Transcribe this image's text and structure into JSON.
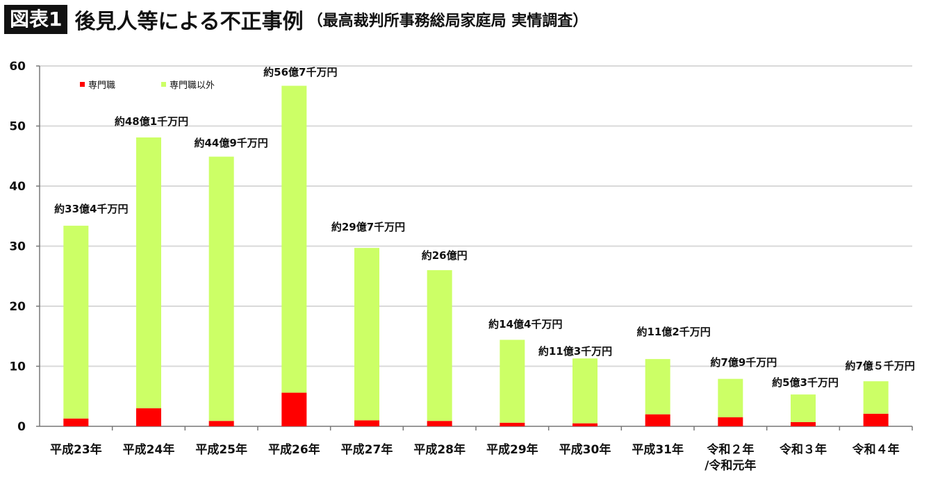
{
  "header": {
    "badge": "図表1",
    "title": "後見人等による不正事例",
    "subtitle": "（最高裁判所事務総局家庭局 実情調査）"
  },
  "chart_data": {
    "type": "bar",
    "stacked": true,
    "categories": [
      "平成23年",
      "平成24年",
      "平成25年",
      "平成26年",
      "平成27年",
      "平成28年",
      "平成29年",
      "平成30年",
      "平成31年",
      "令和２年\n/令和元年",
      "令和３年",
      "令和４年"
    ],
    "series": [
      {
        "name": "専門職",
        "color": "#ff0000",
        "values": [
          1.3,
          3.0,
          0.9,
          5.6,
          1.0,
          0.9,
          0.6,
          0.5,
          2.0,
          1.5,
          0.7,
          2.1
        ]
      },
      {
        "name": "専門職以外",
        "color": "#ccff66",
        "values": [
          32.1,
          45.1,
          44.0,
          51.1,
          28.7,
          25.1,
          13.8,
          10.8,
          9.2,
          6.4,
          4.6,
          5.4
        ]
      }
    ],
    "totals": [
      33.4,
      48.1,
      44.9,
      56.7,
      29.7,
      26.0,
      14.4,
      11.3,
      11.2,
      7.9,
      5.3,
      7.5
    ],
    "data_labels": [
      "約33億4千万円",
      "約48億1千万円",
      "約44億9千万円",
      "約56億7千万円",
      "約29億7千万円",
      "約26億円",
      "約14億4千万円",
      "約11億3千万円",
      "約11億2千万円",
      "約7億9千万円",
      "約5億3千万円",
      "約7億５千万円"
    ],
    "ylim": [
      0,
      60
    ],
    "yticks": [
      0,
      10,
      20,
      30,
      40,
      50,
      60
    ],
    "grid": true,
    "legend": "top-left"
  }
}
